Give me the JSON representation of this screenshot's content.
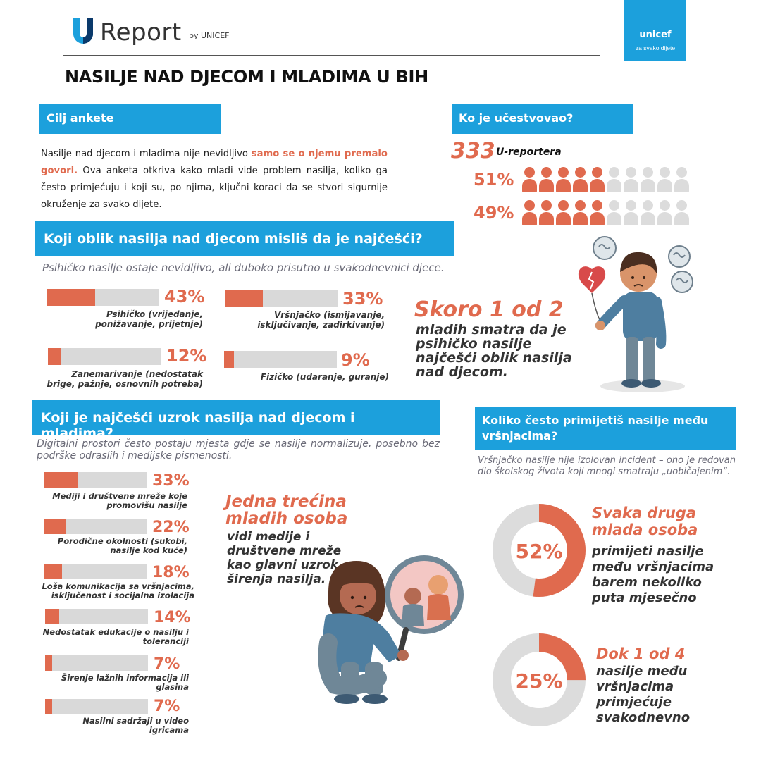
{
  "header": {
    "logo_u": "U",
    "logo_text": "Report",
    "logo_by": "by UNICEF",
    "unicef_brand": "unicef",
    "unicef_sub": "za svako dijete",
    "title": "NASILJE NAD DJECOM I MLADIMA U BIH"
  },
  "goal": {
    "heading": "Cilj ankete",
    "text_before": "Nasilje nad djecom i mladima nije nevidljivo ",
    "text_highlight": "samo se o njemu premalo govori.",
    "text_after": " Ova anketa otkriva kako mladi vide problem nasilja, koliko ga često primjećuju i koji su, po njima, ključni koraci da se stvori sigurnije okruženje za svako dijete."
  },
  "participants": {
    "heading": "Ko je učestvovao?",
    "count": "333",
    "count_label": "U-reportera",
    "rows": [
      {
        "pct": "51%",
        "fraction": 0.51
      },
      {
        "pct": "49%",
        "fraction": 0.49
      }
    ]
  },
  "forms": {
    "heading": "Koji oblik nasilja nad djecom misliš da je najčešći?",
    "note": "Psihičko nasilje ostaje nevidljivo, ali duboko prisutno u svakodnevnici djece.",
    "items": [
      {
        "pct": "43%",
        "value": 43,
        "label": "Psihičko (vrijeđanje, ponižavanje, prijetnje)"
      },
      {
        "pct": "33%",
        "value": 33,
        "label": "Vršnjačko (ismijavanje, isključivanje, zadirkivanje)"
      },
      {
        "pct": "12%",
        "value": 12,
        "label": "Zanemarivanje (nedostatak brige, pažnje, osnovnih potreba)"
      },
      {
        "pct": "9%",
        "value": 9,
        "label": "Fizičko (udaranje, guranje)"
      }
    ],
    "callout_big": "Skoro 1 od 2",
    "callout_text": "mladih smatra da je psihičko nasilje najčešći oblik nasilja nad djecom."
  },
  "causes": {
    "heading": "Koji je najčešći uzrok nasilja nad djecom i mladima?",
    "note": "Digitalni prostori često postaju mjesta gdje se nasilje normalizuje, posebno bez podrške odraslih i medijske pismenosti.",
    "items": [
      {
        "pct": "33%",
        "value": 33,
        "label": "Mediji i društvene mreže koje promovišu nasilje"
      },
      {
        "pct": "22%",
        "value": 22,
        "label": "Porodične okolnosti (sukobi, nasilje kod kuće)"
      },
      {
        "pct": "18%",
        "value": 18,
        "label": "Loša komunikacija sa vršnjacima, isključenost i socijalna izolacija"
      },
      {
        "pct": "14%",
        "value": 14,
        "label": "Nedostatak edukacije o nasilju i toleranciji"
      },
      {
        "pct": "7%",
        "value": 7,
        "label": "Širenje lažnih informacija ili glasina"
      },
      {
        "pct": "7%",
        "value": 7,
        "label": "Nasilni sadržaji u video igricama"
      }
    ],
    "callout_big": "Jedna trećina mladih osoba",
    "callout_text": "vidi medije i društvene mreže kao glavni uzrok širenja nasilja."
  },
  "frequency": {
    "heading": "Koliko često primijetiš nasilje među vršnjacima?",
    "note": "Vršnjačko nasilje nije izolovan incident – ono je redovan dio školskog života koji mnogi smatraju „uobičajenim“.",
    "items": [
      {
        "pct": "52%",
        "value": 52,
        "big": "Svaka druga mlada osoba",
        "text": "primijeti nasilje među vršnjacima barem nekoliko puta mjesečno"
      },
      {
        "pct": "25%",
        "value": 25,
        "big": "Dok 1 od 4",
        "text": "nasilje među vršnjacima primjećuje svakodnevno"
      }
    ]
  },
  "colors": {
    "accent": "#e06a4e",
    "brand": "#1ca0dc",
    "track": "#d9d9d9"
  }
}
